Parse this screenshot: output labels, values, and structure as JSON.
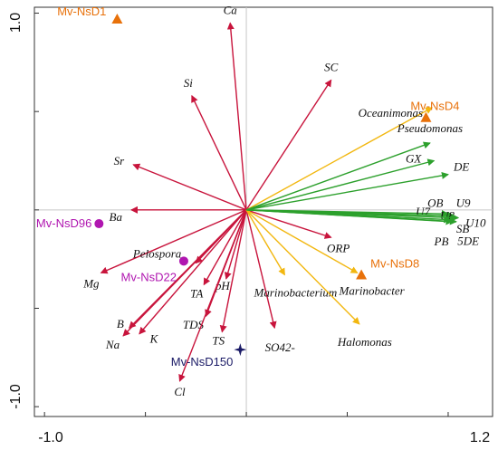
{
  "chart_data": {
    "type": "scatter",
    "title": "",
    "xlabel": "",
    "ylabel": "",
    "xlim": [
      -1.05,
      1.22
    ],
    "ylim": [
      -1.05,
      1.03
    ],
    "x_ticks": [
      {
        "value": -1.0,
        "label": "-1.0"
      },
      {
        "value": 1.2,
        "label": "1.2"
      }
    ],
    "y_ticks": [
      {
        "value": 1.0,
        "label": "1.0"
      },
      {
        "value": -1.0,
        "label": "-1.0"
      }
    ],
    "grid": false,
    "origin_lines": true,
    "series": [
      {
        "color": "#c8143c",
        "points": [
          {
            "label": "Ca",
            "x": -0.08,
            "y": 0.95
          },
          {
            "label": "Si",
            "x": -0.27,
            "y": 0.58
          },
          {
            "label": "SC",
            "x": 0.42,
            "y": 0.66
          },
          {
            "label": "Sr",
            "x": -0.56,
            "y": 0.23
          },
          {
            "label": "Ba",
            "x": -0.57,
            "y": 0.0
          },
          {
            "label": "Mg",
            "x": -0.72,
            "y": -0.32
          },
          {
            "label": "Pelospora",
            "x": -0.25,
            "y": -0.27
          },
          {
            "label": "pH",
            "x": -0.1,
            "y": -0.35
          },
          {
            "label": "TA",
            "x": -0.21,
            "y": -0.38
          },
          {
            "label": "TDS",
            "x": -0.2,
            "y": -0.54
          },
          {
            "label": "B",
            "x": -0.58,
            "y": -0.6
          },
          {
            "label": "K",
            "x": -0.53,
            "y": -0.63
          },
          {
            "label": "Na",
            "x": -0.61,
            "y": -0.64
          },
          {
            "label": "TS",
            "x": -0.12,
            "y": -0.62
          },
          {
            "label": "Cl",
            "x": -0.33,
            "y": -0.87
          },
          {
            "label": "SO42-",
            "x": 0.14,
            "y": -0.6
          },
          {
            "label": "ORP",
            "x": 0.42,
            "y": -0.14
          }
        ]
      },
      {
        "color": "#f2b70f",
        "points": [
          {
            "label": "Oceanimonas",
            "x": 0.92,
            "y": 0.52
          },
          {
            "label": "Marinobacterium",
            "x": 0.19,
            "y": -0.33
          },
          {
            "label": "Marinobacter",
            "x": 0.55,
            "y": -0.32
          },
          {
            "label": "Halomonas",
            "x": 0.56,
            "y": -0.58
          }
        ]
      },
      {
        "color": "#2ca02c",
        "points": [
          {
            "label": "Pseudomonas",
            "x": 0.91,
            "y": 0.34
          },
          {
            "label": "GX",
            "x": 0.93,
            "y": 0.25
          },
          {
            "label": "DE",
            "x": 1.0,
            "y": 0.18
          },
          {
            "label": "U7",
            "x": 1.0,
            "y": -0.02
          },
          {
            "label": "OB",
            "x": 1.02,
            "y": -0.03
          },
          {
            "label": "U9",
            "x": 1.03,
            "y": -0.03
          },
          {
            "label": "U8",
            "x": 1.04,
            "y": -0.04
          },
          {
            "label": "U10",
            "x": 1.05,
            "y": -0.04
          },
          {
            "label": "SB",
            "x": 1.04,
            "y": -0.06
          },
          {
            "label": "PB",
            "x": 1.02,
            "y": -0.06
          },
          {
            "label": "5DE",
            "x": 1.01,
            "y": -0.05
          }
        ]
      }
    ],
    "samples": [
      {
        "label": "Mv-NsD1",
        "x": -0.64,
        "y": 0.97,
        "marker": "triangle",
        "color": "#e8710a"
      },
      {
        "label": "Mv-NsD4",
        "x": 0.89,
        "y": 0.47,
        "marker": "triangle",
        "color": "#e8710a"
      },
      {
        "label": "Mv-NsD8",
        "x": 0.57,
        "y": -0.33,
        "marker": "triangle",
        "color": "#e8710a"
      },
      {
        "label": "Mv-NsD96",
        "x": -0.73,
        "y": -0.07,
        "marker": "circle",
        "color": "#b016b0"
      },
      {
        "label": "Mv-NsD22",
        "x": -0.31,
        "y": -0.26,
        "marker": "circle",
        "color": "#b016b0"
      },
      {
        "label": "Mv-NsD150",
        "x": -0.03,
        "y": -0.71,
        "marker": "star",
        "color": "#1a1a66"
      }
    ]
  }
}
